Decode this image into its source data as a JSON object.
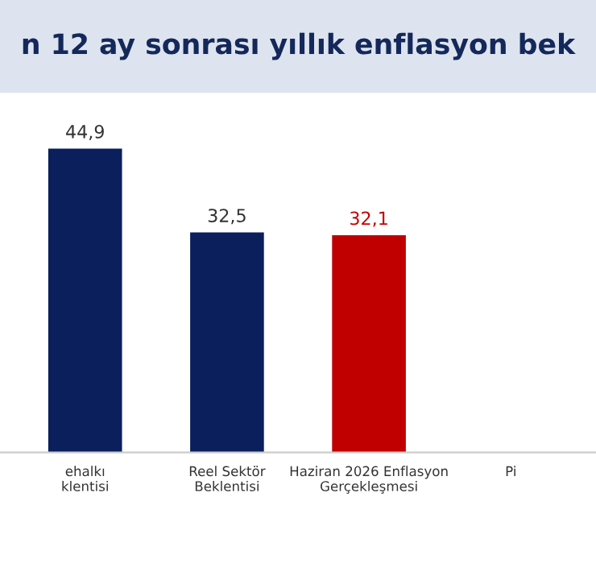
{
  "chart_data": {
    "type": "bar",
    "title": "n 12 ay sonrası yıllık enflasyon bek",
    "categories": [
      "ehalkı\nklentisi",
      "Reel Sektör\nBeklentisi",
      "Haziran 2026 Enflasyon\nGerçekleşmesi",
      "Pi"
    ],
    "values": [
      44.9,
      32.5,
      32.1,
      null
    ],
    "colors": [
      "#0a1f5c",
      "#0a1f5c",
      "#c00000",
      "#0a1f5c"
    ],
    "value_labels": [
      "44,9",
      "32,5",
      "32,1",
      null
    ],
    "grid": false,
    "legend": false
  }
}
